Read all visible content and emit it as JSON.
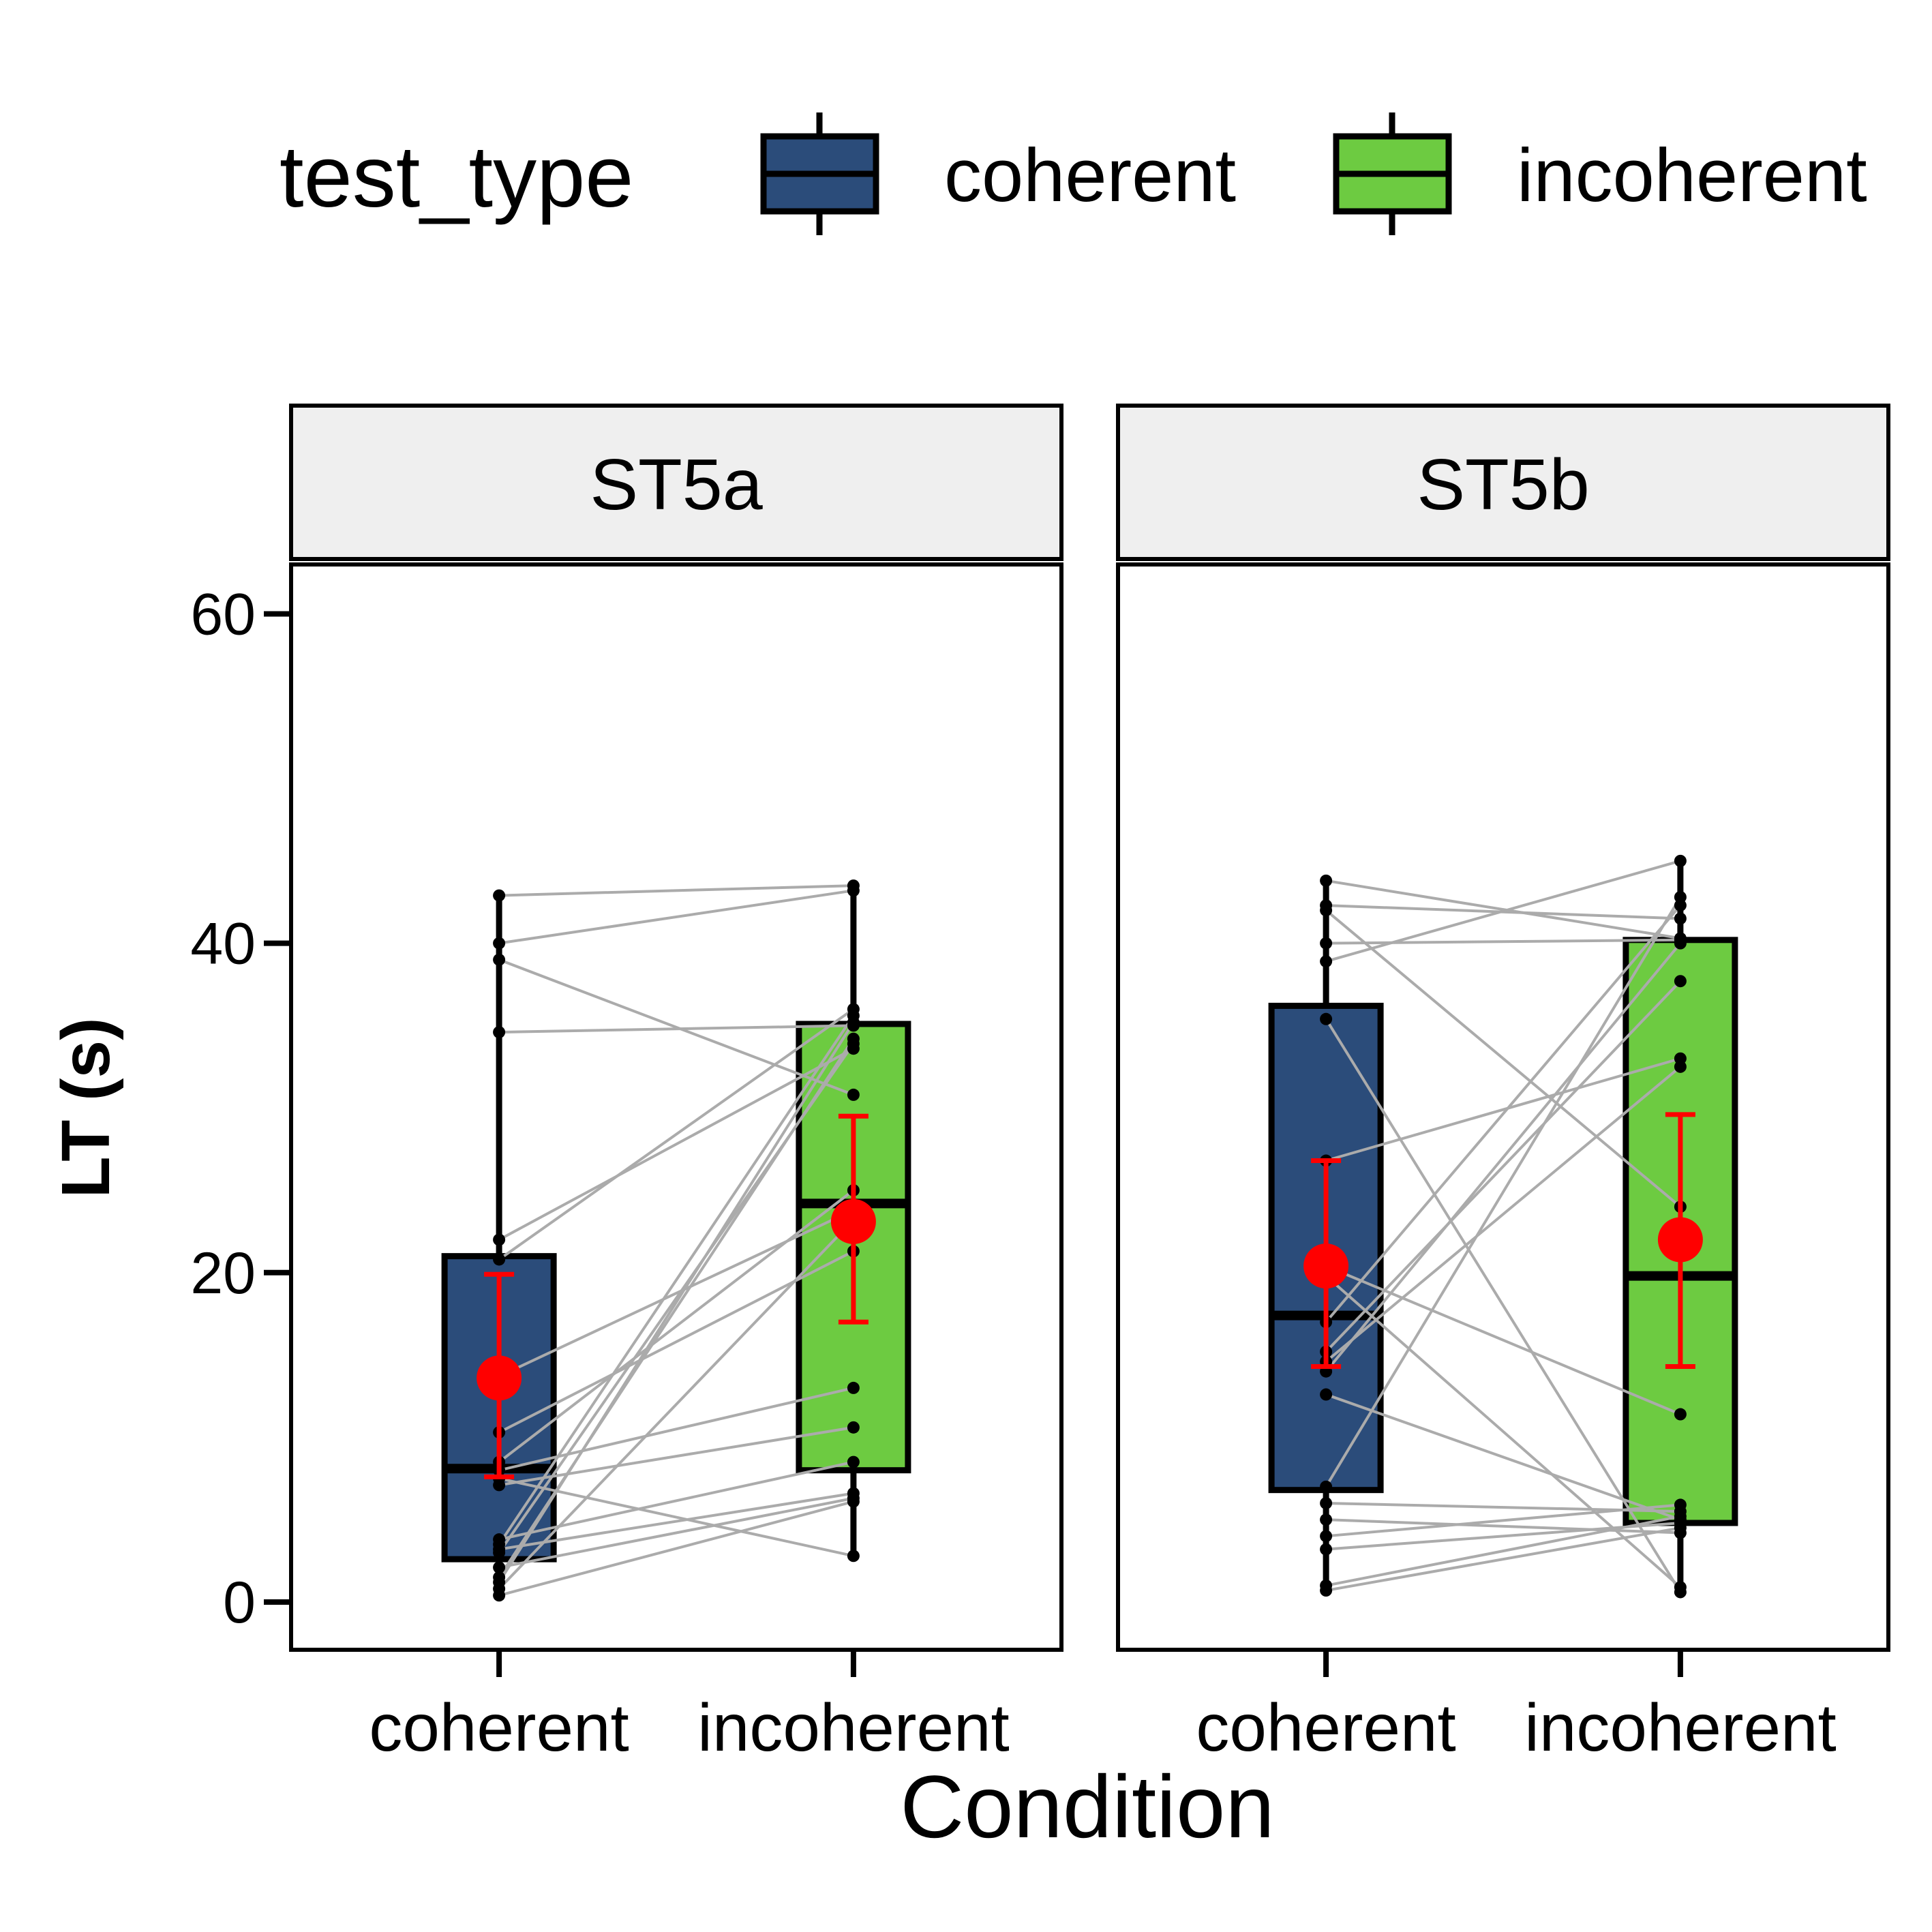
{
  "chart_data": {
    "type": "box",
    "xlabel": "Condition",
    "ylabel": "LT (s)",
    "ylim": [
      -2.9,
      63
    ],
    "y_ticks": [
      0,
      20,
      40,
      60
    ],
    "y_tick_labels": [
      "0",
      "20",
      "40",
      "60"
    ],
    "categories": [
      "coherent",
      "incoherent"
    ],
    "legend": {
      "title": "test_type",
      "placement": "top",
      "entries": [
        {
          "label": "coherent",
          "color": "#2b4c7a"
        },
        {
          "label": "incoherent",
          "color": "#6dcb41"
        }
      ]
    },
    "colors": {
      "coherent": "#2b4c7a",
      "incoherent": "#6dcb41",
      "mean": "#ff0000",
      "pair_line": "#ababab",
      "point": "#000000",
      "strip": "#efefef"
    },
    "panels": [
      {
        "label": "ST5a",
        "boxes": [
          {
            "category": "coherent",
            "q1": 2.6,
            "median": 8.1,
            "q3": 21.0,
            "whisker_low": 0.4,
            "whisker_high": 42.8
          },
          {
            "category": "incoherent",
            "q1": 8.0,
            "median": 24.2,
            "q3": 35.1,
            "whisker_low": 2.8,
            "whisker_high": 43.6
          }
        ],
        "means": [
          {
            "category": "coherent",
            "mean": 13.6,
            "ci_low": 7.6,
            "ci_high": 19.9
          },
          {
            "category": "incoherent",
            "mean": 23.1,
            "ci_low": 17.0,
            "ci_high": 29.5
          }
        ],
        "pairs": [
          [
            42.9,
            43.5
          ],
          [
            40.0,
            43.2
          ],
          [
            39.0,
            30.8
          ],
          [
            34.6,
            35.0
          ],
          [
            22.0,
            33.6
          ],
          [
            20.8,
            36.0
          ],
          [
            13.7,
            23.8
          ],
          [
            10.3,
            21.3
          ],
          [
            8.5,
            25.0
          ],
          [
            8.0,
            13.0
          ],
          [
            7.1,
            10.6
          ],
          [
            7.5,
            2.8
          ],
          [
            3.8,
            8.5
          ],
          [
            3.2,
            6.6
          ],
          [
            3.5,
            35.6
          ],
          [
            3.0,
            33.9
          ],
          [
            2.1,
            6.3
          ],
          [
            1.5,
            34.2
          ],
          [
            1.2,
            35.2
          ],
          [
            0.8,
            23.2
          ],
          [
            0.4,
            6.1
          ]
        ]
      },
      {
        "label": "ST5b",
        "boxes": [
          {
            "category": "coherent",
            "q1": 6.8,
            "median": 17.4,
            "q3": 36.2,
            "whisker_low": 0.7,
            "whisker_high": 43.8
          },
          {
            "category": "incoherent",
            "q1": 4.8,
            "median": 19.8,
            "q3": 40.2,
            "whisker_low": 0.6,
            "whisker_high": 45.0
          }
        ],
        "means": [
          {
            "category": "coherent",
            "mean": 20.4,
            "ci_low": 14.3,
            "ci_high": 26.8
          },
          {
            "category": "incoherent",
            "mean": 22.0,
            "ci_low": 14.3,
            "ci_high": 29.6
          }
        ],
        "pairs": [
          [
            43.8,
            40.3
          ],
          [
            42.3,
            41.5
          ],
          [
            42.0,
            24.0
          ],
          [
            40.0,
            40.2
          ],
          [
            38.9,
            45.0
          ],
          [
            35.4,
            0.6
          ],
          [
            26.8,
            33.0
          ],
          [
            20.4,
            11.4
          ],
          [
            19.8,
            0.9
          ],
          [
            17.0,
            42.3
          ],
          [
            15.2,
            37.7
          ],
          [
            14.6,
            32.5
          ],
          [
            14.0,
            40.0
          ],
          [
            12.6,
            5.0
          ],
          [
            7.0,
            42.8
          ],
          [
            6.0,
            5.5
          ],
          [
            5.0,
            4.2
          ],
          [
            4.0,
            5.9
          ],
          [
            3.2,
            4.8
          ],
          [
            1.0,
            5.2
          ],
          [
            0.7,
            4.5
          ]
        ]
      }
    ]
  }
}
